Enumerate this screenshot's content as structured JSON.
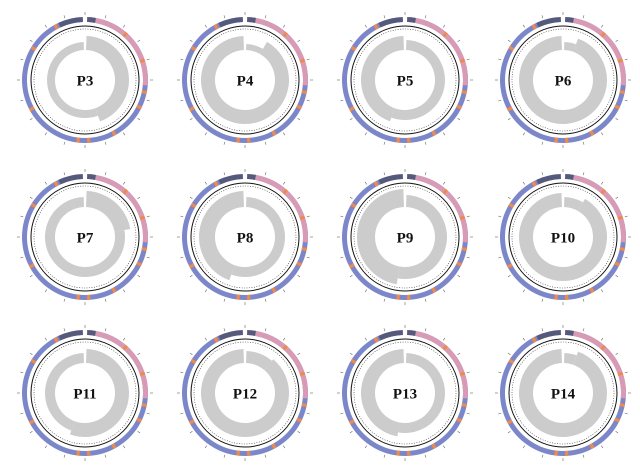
{
  "panels": [
    {
      "label": "P3"
    },
    {
      "label": "P4"
    },
    {
      "label": "P5"
    },
    {
      "label": "P6"
    },
    {
      "label": "P7"
    },
    {
      "label": "P8"
    },
    {
      "label": "P9"
    },
    {
      "label": "P10"
    },
    {
      "label": "P11"
    },
    {
      "label": "P12"
    },
    {
      "label": "P13"
    },
    {
      "label": "P14"
    }
  ]
}
